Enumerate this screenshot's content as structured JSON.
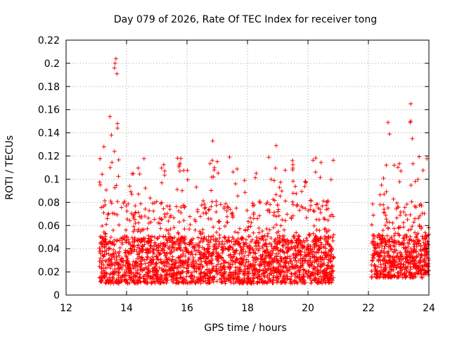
{
  "chart_data": {
    "type": "scatter",
    "title": "Day 079 of 2026, Rate Of TEC Index for receiver tong",
    "xlabel": "GPS time / hours",
    "ylabel": "ROTI / TECUs",
    "xlim": [
      12,
      24
    ],
    "ylim": [
      0,
      0.22
    ],
    "x_ticks": [
      12,
      14,
      16,
      18,
      20,
      22,
      24
    ],
    "x_tick_labels": [
      "12",
      "14",
      "16",
      "18",
      "20",
      "22",
      "24"
    ],
    "y_ticks": [
      0,
      0.02,
      0.04,
      0.06,
      0.08,
      0.1,
      0.12,
      0.14,
      0.16,
      0.18,
      0.2,
      0.22
    ],
    "y_tick_labels": [
      "0",
      "0.02",
      "0.04",
      "0.06",
      "0.08",
      "0.1",
      "0.12",
      "0.14",
      "0.16",
      "0.18",
      "0.2",
      "0.22"
    ],
    "grid": true,
    "marker": "+",
    "series_color": "#ff0000",
    "data_segments": [
      {
        "x_start": 13.1,
        "x_end": 20.85,
        "typical_range": [
          0.01,
          0.065
        ],
        "max_value": 0.205
      },
      {
        "x_start": 22.1,
        "x_end": 24.0,
        "typical_range": [
          0.015,
          0.065
        ],
        "max_value": 0.165
      }
    ],
    "peaks": [
      {
        "x": 13.65,
        "y": 0.204
      },
      {
        "x": 13.62,
        "y": 0.2
      },
      {
        "x": 13.6,
        "y": 0.196
      },
      {
        "x": 13.68,
        "y": 0.191
      },
      {
        "x": 13.45,
        "y": 0.154
      },
      {
        "x": 13.7,
        "y": 0.148
      },
      {
        "x": 13.7,
        "y": 0.144
      },
      {
        "x": 13.5,
        "y": 0.138
      },
      {
        "x": 13.25,
        "y": 0.128
      },
      {
        "x": 13.6,
        "y": 0.124
      },
      {
        "x": 16.85,
        "y": 0.133
      },
      {
        "x": 18.95,
        "y": 0.129
      },
      {
        "x": 23.4,
        "y": 0.165
      },
      {
        "x": 23.4,
        "y": 0.15
      },
      {
        "x": 23.38,
        "y": 0.149
      },
      {
        "x": 22.65,
        "y": 0.149
      },
      {
        "x": 22.7,
        "y": 0.139
      },
      {
        "x": 23.45,
        "y": 0.135
      }
    ]
  }
}
